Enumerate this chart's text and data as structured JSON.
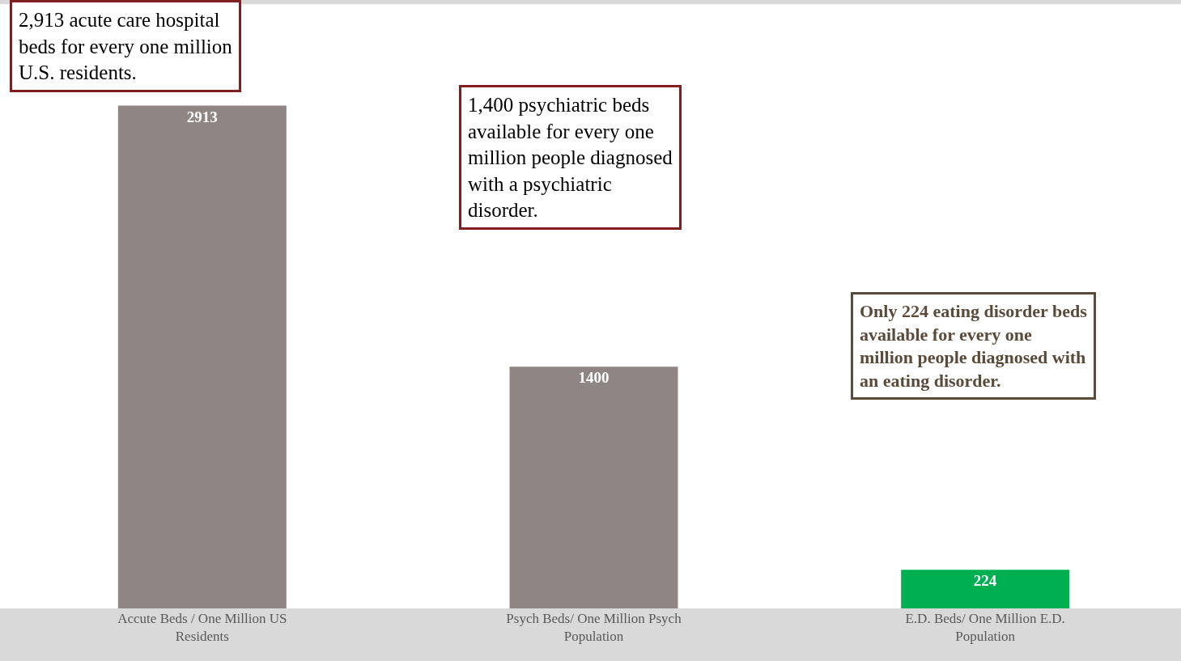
{
  "chart_data": {
    "type": "bar",
    "categories": [
      "Accute Beds / One Million US Residents",
      "Psych Beds/ One Million Psych Population",
      "E.D. Beds/ One Million E.D. Population"
    ],
    "values": [
      2913,
      1400,
      224
    ],
    "colors": [
      "#8f8583",
      "#8f8583",
      "#00b050"
    ],
    "data_labels": true,
    "annotations": [
      "2,913 acute care hospital beds for every one million U.S. residents.",
      "1,400 psychiatric beds available for every one million people diagnosed with a psychiatric disorder.",
      "Only 224 eating disorder beds available for every one million people diagnosed with an eating disorder."
    ]
  }
}
